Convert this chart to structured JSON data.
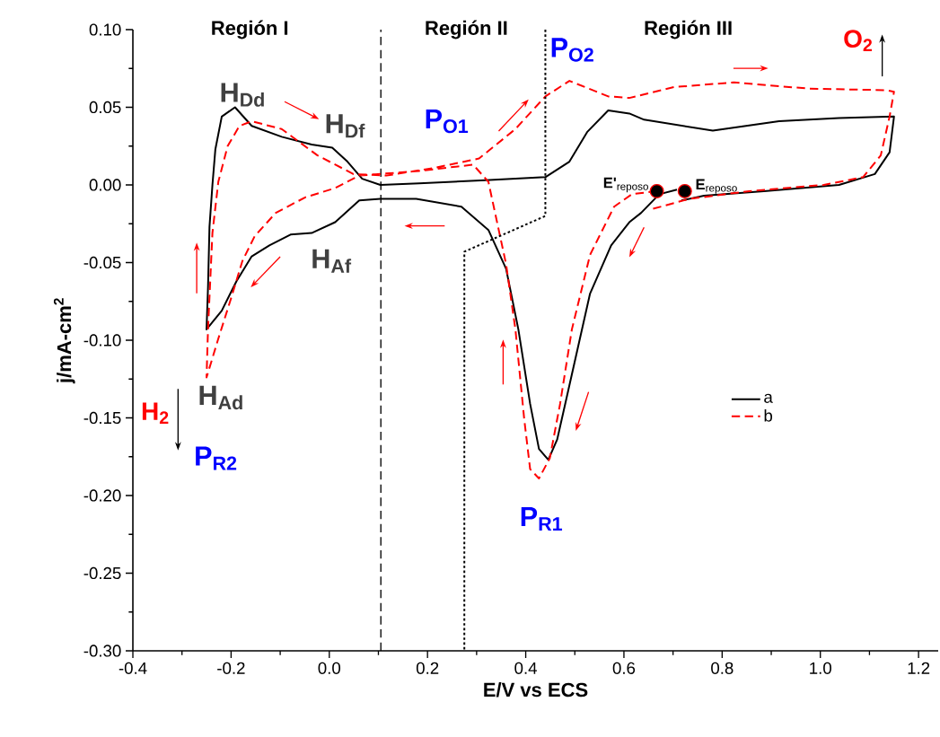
{
  "chart_data": {
    "type": "line",
    "xlabel": "E/V vs ECS",
    "ylabel": "j/mA-cm$^{2}$",
    "xlim": [
      -0.4,
      1.24
    ],
    "ylim": [
      -0.3,
      0.1
    ],
    "xticks": [
      -0.4,
      -0.2,
      {
        "value": 0,
        "label": "0.0"
      },
      0.2,
      0.4,
      0.6,
      0.8,
      {
        "value": 1,
        "label": "1.0"
      },
      1.2
    ],
    "yticks": [
      {
        "value": -0.3,
        "label": "-0.30"
      },
      {
        "value": -0.25,
        "label": "-0.25"
      },
      {
        "value": -0.2,
        "label": "-0.20"
      },
      {
        "value": -0.15,
        "label": "-0.15"
      },
      {
        "value": -0.1,
        "label": "-0.10"
      },
      {
        "value": -0.05,
        "label": "-0.05"
      },
      {
        "value": 0,
        "label": "0.00"
      },
      {
        "value": 0.05,
        "label": "0.05"
      },
      {
        "value": 0.1,
        "label": "0.10"
      }
    ],
    "legend": "right",
    "series": [
      {
        "name": "a",
        "color": "#000000",
        "line_style": "solid",
        "x": [
          0.708,
          0.672,
          0.635,
          0.611,
          0.574,
          0.531,
          0.494,
          0.464,
          0.446,
          0.427,
          0.409,
          0.385,
          0.36,
          0.324,
          0.269,
          0.177,
          0.104,
          0.061,
          0.012,
          -0.036,
          -0.079,
          -0.122,
          -0.158,
          -0.189,
          -0.219,
          -0.25,
          -0.247,
          -0.244,
          -0.238,
          -0.232,
          -0.219,
          -0.192,
          -0.158,
          -0.097,
          -0.036,
          0.006,
          0.037,
          0.067,
          0.104,
          0.183,
          0.318,
          0.44,
          0.489,
          0.525,
          0.568,
          0.611,
          0.641,
          0.781,
          0.916,
          1.038,
          1.15,
          1.141,
          1.111,
          1.038,
          0.885,
          0.763,
          0.717
        ],
        "values": [
          -0.003,
          -0.006,
          -0.018,
          -0.024,
          -0.039,
          -0.07,
          -0.122,
          -0.164,
          -0.177,
          -0.17,
          -0.141,
          -0.093,
          -0.054,
          -0.029,
          -0.014,
          -0.009,
          -0.009,
          -0.01,
          -0.024,
          -0.031,
          -0.032,
          -0.039,
          -0.046,
          -0.062,
          -0.081,
          -0.093,
          -0.066,
          -0.027,
          0.0,
          0.023,
          0.044,
          0.05,
          0.038,
          0.031,
          0.026,
          0.024,
          0.015,
          0.004,
          0.0,
          0.001,
          0.003,
          0.005,
          0.015,
          0.034,
          0.048,
          0.046,
          0.042,
          0.035,
          0.041,
          0.043,
          0.044,
          0.021,
          0.007,
          0.0,
          -0.004,
          -0.007,
          -0.01
        ]
      },
      {
        "name": "b",
        "color": "#ff0000",
        "line_style": "dashed",
        "x": [
          0.667,
          0.616,
          0.58,
          0.531,
          0.494,
          0.47,
          0.449,
          0.427,
          0.409,
          0.397,
          0.379,
          0.36,
          0.324,
          0.293,
          0.183,
          0.061,
          0.012,
          -0.049,
          -0.109,
          -0.152,
          -0.177,
          -0.201,
          -0.226,
          -0.25,
          -0.247,
          -0.238,
          -0.226,
          -0.207,
          -0.183,
          -0.158,
          -0.097,
          -0.024,
          0.049,
          0.116,
          0.214,
          0.305,
          0.379,
          0.44,
          0.489,
          0.568,
          0.611,
          0.702,
          0.824,
          0.977,
          1.135,
          1.15,
          1.141,
          1.123,
          1.087,
          1.007,
          0.855,
          0.733,
          0.652
        ],
        "values": [
          -0.004,
          -0.006,
          -0.014,
          -0.045,
          -0.093,
          -0.141,
          -0.176,
          -0.189,
          -0.183,
          -0.151,
          -0.093,
          -0.051,
          0.002,
          0.013,
          0.009,
          0.006,
          -0.002,
          -0.008,
          -0.018,
          -0.033,
          -0.049,
          -0.074,
          -0.099,
          -0.124,
          -0.093,
          -0.031,
          0.002,
          0.025,
          0.038,
          0.041,
          0.036,
          0.019,
          0.007,
          0.006,
          0.011,
          0.017,
          0.036,
          0.057,
          0.067,
          0.057,
          0.056,
          0.063,
          0.066,
          0.062,
          0.061,
          0.06,
          0.044,
          0.019,
          0.005,
          0.0,
          -0.004,
          -0.009,
          -0.016
        ]
      },
      {
        "type": "scatter",
        "color": "#000000",
        "marker": "circle",
        "x": [
          0.667,
          0.724
        ],
        "values": [
          -0.004,
          -0.004
        ]
      },
      {
        "color": "#000000",
        "line_style": "dotted",
        "x": [
          0.44,
          0.44,
          0.275,
          0.275
        ],
        "values": [
          0.1,
          -0.02,
          -0.043,
          -0.3
        ]
      }
    ],
    "ref_lines": [
      {
        "axis": "x",
        "value": 0.105,
        "color": "#000000",
        "line_style": "dashed"
      }
    ],
    "annotations": [
      "Región I",
      "Región II",
      "Región III",
      "H$_{Dd}$",
      "H$_{Df}$",
      "H$_{Af}$",
      "H$_{Ad}$",
      "P$_{O1}$",
      "P$_{O2}$",
      "P$_{R1}$",
      "P$_{R2}$",
      "H$_{2}$",
      "O$_{2}$",
      "**E'**$_{reposo}$",
      "**E**$_{reposo}$"
    ]
  }
}
